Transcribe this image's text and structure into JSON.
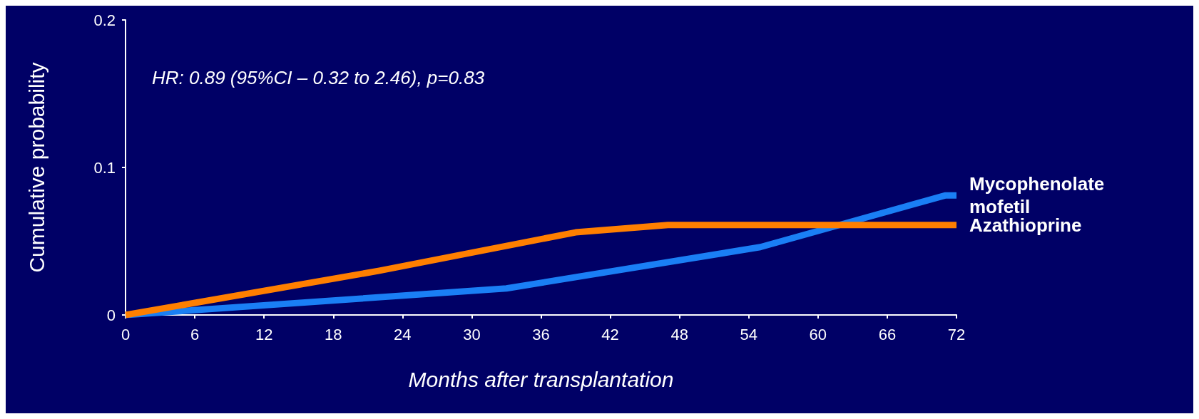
{
  "chart_data": {
    "type": "line",
    "xlabel": "Months after transplantation",
    "ylabel": "Cumulative probability",
    "annotations": [
      "HR: 0.89 (95%CI – 0.32 to 2.46), p=0.83"
    ],
    "xlim": [
      0,
      72
    ],
    "xticks": [
      0,
      6,
      12,
      18,
      24,
      30,
      36,
      42,
      48,
      54,
      60,
      66,
      72
    ],
    "ylim": [
      0,
      0.2
    ],
    "yticks": [
      0,
      0.1,
      0.2
    ],
    "grid": false,
    "legend": false,
    "marker": "none",
    "line_style": "solid",
    "series": [
      {
        "name": "Mycophenolate mofetil",
        "color": "#1a7ff5",
        "x": [
          0,
          33,
          55,
          71,
          72
        ],
        "values": [
          0,
          0.018,
          0.046,
          0.081,
          0.081
        ]
      },
      {
        "name": "Azathioprine",
        "color": "#ff7f00",
        "x": [
          0,
          22,
          39,
          47,
          72
        ],
        "values": [
          0,
          0.03,
          0.056,
          0.061,
          0.061
        ]
      }
    ]
  }
}
